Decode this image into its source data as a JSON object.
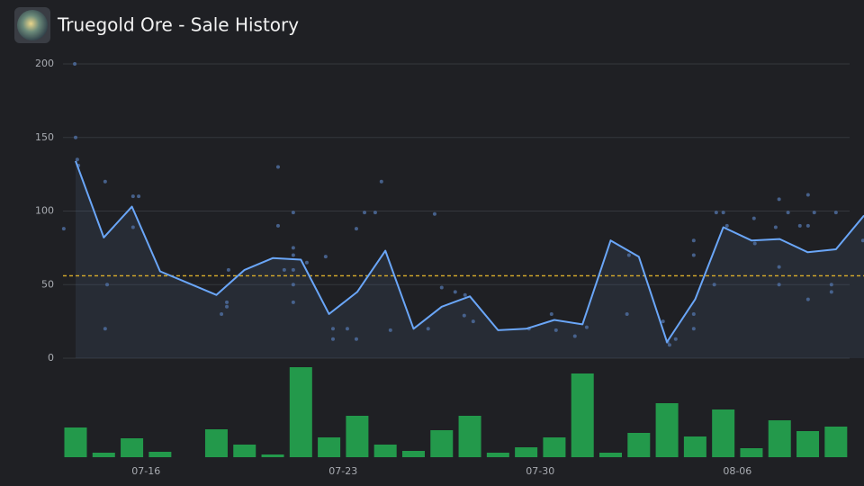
{
  "chart_data": {
    "type": "line",
    "title": "Truegold Ore - Sale History",
    "categories": [
      null,
      null,
      null,
      "07-16",
      null,
      null,
      null,
      null,
      null,
      null,
      "07-23",
      null,
      null,
      null,
      null,
      null,
      null,
      "07-30",
      null,
      null,
      null,
      null,
      null,
      null,
      "08-06",
      null,
      null,
      null,
      null
    ],
    "ylim": [
      0,
      200
    ],
    "yticks": [
      0,
      50,
      100,
      150,
      200
    ],
    "grid": true,
    "series": [
      {
        "type": "line",
        "color": "#6aa6f8",
        "values": [
          134,
          82,
          103,
          59,
          51,
          43,
          60,
          68,
          67,
          30,
          45,
          73,
          20,
          35,
          42,
          19,
          20,
          26,
          23,
          80,
          69,
          11,
          40,
          89,
          80,
          81,
          72,
          74,
          97
        ]
      },
      {
        "type": "bar",
        "color": "#23994b",
        "values": [
          33,
          5,
          21,
          6,
          0,
          31,
          14,
          3,
          100,
          22,
          46,
          14,
          7,
          30,
          46,
          5,
          11,
          22,
          93,
          5,
          27,
          60,
          23,
          53,
          10,
          41,
          29,
          34,
          null
        ]
      }
    ],
    "scatter": {
      "color": "#4d6c9c",
      "x": [
        -0.42,
        -0.03,
        0,
        0.06,
        0.1,
        1.05,
        1.05,
        1.12,
        2.04,
        2.24,
        2.04,
        5.43,
        5.37,
        5.37,
        5.18,
        7.19,
        7.19,
        7.41,
        7.73,
        7.73,
        7.73,
        7.73,
        7.73,
        7.73,
        8.21,
        8.88,
        9.14,
        9.14,
        9.65,
        9.97,
        9.97,
        10.26,
        10.64,
        10.86,
        11.18,
        12.52,
        12.75,
        13.0,
        13.48,
        13.83,
        13.8,
        14.12,
        16.1,
        16.9,
        17.06,
        17.73,
        18.15,
        19.58,
        19.65,
        20.86,
        21.02,
        21.09,
        21.31,
        21.95,
        21.95,
        21.95,
        21.95,
        22.68,
        22.75,
        23.0,
        23.13,
        24.09,
        24.12,
        24.98,
        24.86,
        24.98,
        24.98,
        25.3,
        25.72,
        26.01,
        26.01,
        26.01,
        26.23,
        26.84,
        26.84,
        27.0,
        27.96
      ],
      "y": [
        88,
        200,
        150,
        135,
        131,
        120,
        20,
        50,
        110,
        110,
        89,
        60,
        38,
        35,
        30,
        130,
        90,
        60,
        99,
        75,
        70,
        60,
        50,
        38,
        65,
        69,
        20,
        13,
        20,
        13,
        88,
        99,
        99,
        120,
        19,
        20,
        98,
        48,
        45,
        43,
        29,
        25,
        20,
        30,
        19,
        15,
        21,
        30,
        70,
        25,
        11,
        9,
        13,
        80,
        70,
        30,
        20,
        50,
        99,
        99,
        90,
        95,
        78,
        108,
        89,
        62,
        50,
        99,
        90,
        111,
        90,
        40,
        99,
        45,
        50,
        99,
        80
      ]
    },
    "average": {
      "value": 56,
      "color": "#d9ad2b"
    }
  }
}
